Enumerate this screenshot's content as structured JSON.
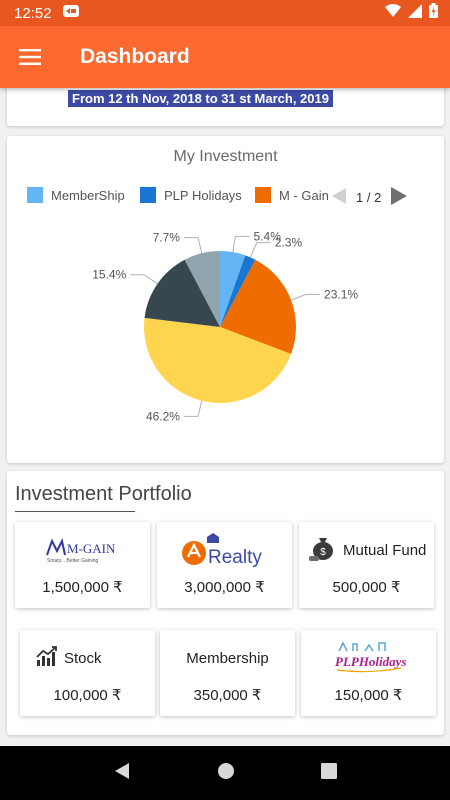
{
  "status_bar": {
    "time": "12:52"
  },
  "app_bar": {
    "title": "Dashboard",
    "menu_icon": "hamburger-menu-icon"
  },
  "date_range": "From 12 th Nov, 2018 to 31 st March, 2019",
  "my_investment": {
    "title": "My Investment",
    "legend": [
      {
        "label": "MemberShip",
        "color": "#64b5f6"
      },
      {
        "label": "PLP Holidays",
        "color": "#1976d2"
      },
      {
        "label": "M - Gain",
        "color": "#ef6c00"
      }
    ],
    "pager": "1 / 2"
  },
  "chart_data": {
    "type": "pie",
    "title": "My Investment",
    "slices": [
      {
        "label": "MemberShip",
        "value": 5.4,
        "display": "5.4%",
        "color": "#64b5f6"
      },
      {
        "label": "PLP Holidays",
        "value": 2.3,
        "display": "2.3%",
        "color": "#1976d2"
      },
      {
        "label": "M - Gain",
        "value": 23.1,
        "display": "23.1%",
        "color": "#ef6c00"
      },
      {
        "label": "",
        "value": 46.2,
        "display": "46.2%",
        "color": "#ffd54f"
      },
      {
        "label": "",
        "value": 15.4,
        "display": "15.4%",
        "color": "#37474f"
      },
      {
        "label": "",
        "value": 7.7,
        "display": "7.7%",
        "color": "#90a4ae"
      }
    ],
    "legend_position": "top",
    "legend_pages": "1 / 2"
  },
  "portfolio": {
    "title": "Investment Portfolio",
    "tiles": [
      {
        "name": "M-GAIN",
        "tagline": "Smaty... Better Gaining",
        "amount": "1,500,000 ₹",
        "icon": "mgain-logo"
      },
      {
        "name": "Realty",
        "amount": "3,000,000 ₹",
        "icon": "realty-logo"
      },
      {
        "name": "Mutual Fund",
        "amount": "500,000 ₹",
        "icon": "money-bag-icon"
      },
      {
        "name": "Stock",
        "amount": "100,000 ₹",
        "icon": "stock-chart-icon"
      },
      {
        "name": "Membership",
        "amount": "350,000 ₹",
        "icon": ""
      },
      {
        "name": "PLPHolidays",
        "amount": "150,000 ₹",
        "icon": "plp-holidays-logo"
      }
    ]
  },
  "colors": {
    "app_bar": "#fb6830",
    "status_bar": "#e8571f",
    "date_banner": "#3d4aa4"
  }
}
